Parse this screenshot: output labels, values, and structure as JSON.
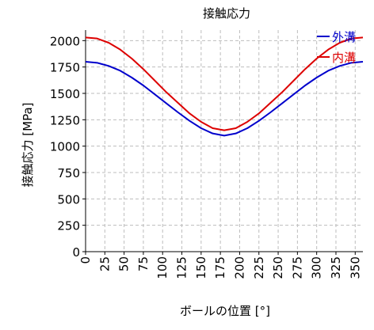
{
  "chart_data": {
    "type": "line",
    "title": "接触応力",
    "xlabel": "ボールの位置 [°]",
    "ylabel": "接触応力 [MPa]",
    "xlim": [
      0,
      360
    ],
    "ylim": [
      0,
      2100
    ],
    "x_ticks": [
      0,
      25,
      50,
      75,
      100,
      125,
      150,
      175,
      200,
      225,
      250,
      275,
      300,
      325,
      350
    ],
    "y_ticks": [
      0,
      250,
      500,
      750,
      1000,
      1250,
      1500,
      1750,
      2000
    ],
    "grid": true,
    "legend_position": "top-right",
    "x": [
      0,
      15,
      30,
      45,
      60,
      75,
      90,
      105,
      120,
      135,
      150,
      165,
      180,
      195,
      210,
      225,
      240,
      255,
      270,
      285,
      300,
      315,
      330,
      345,
      360
    ],
    "series": [
      {
        "name": "外溝",
        "color": "#0000cc",
        "values": [
          1800,
          1790,
          1760,
          1715,
          1650,
          1575,
          1490,
          1405,
          1320,
          1240,
          1170,
          1120,
          1100,
          1120,
          1170,
          1240,
          1320,
          1405,
          1490,
          1575,
          1650,
          1715,
          1760,
          1790,
          1800
        ]
      },
      {
        "name": "内溝",
        "color": "#dd0000",
        "values": [
          2030,
          2020,
          1980,
          1915,
          1830,
          1730,
          1620,
          1510,
          1410,
          1310,
          1230,
          1170,
          1150,
          1170,
          1230,
          1310,
          1410,
          1510,
          1620,
          1730,
          1830,
          1915,
          1980,
          2020,
          2030
        ]
      }
    ]
  }
}
